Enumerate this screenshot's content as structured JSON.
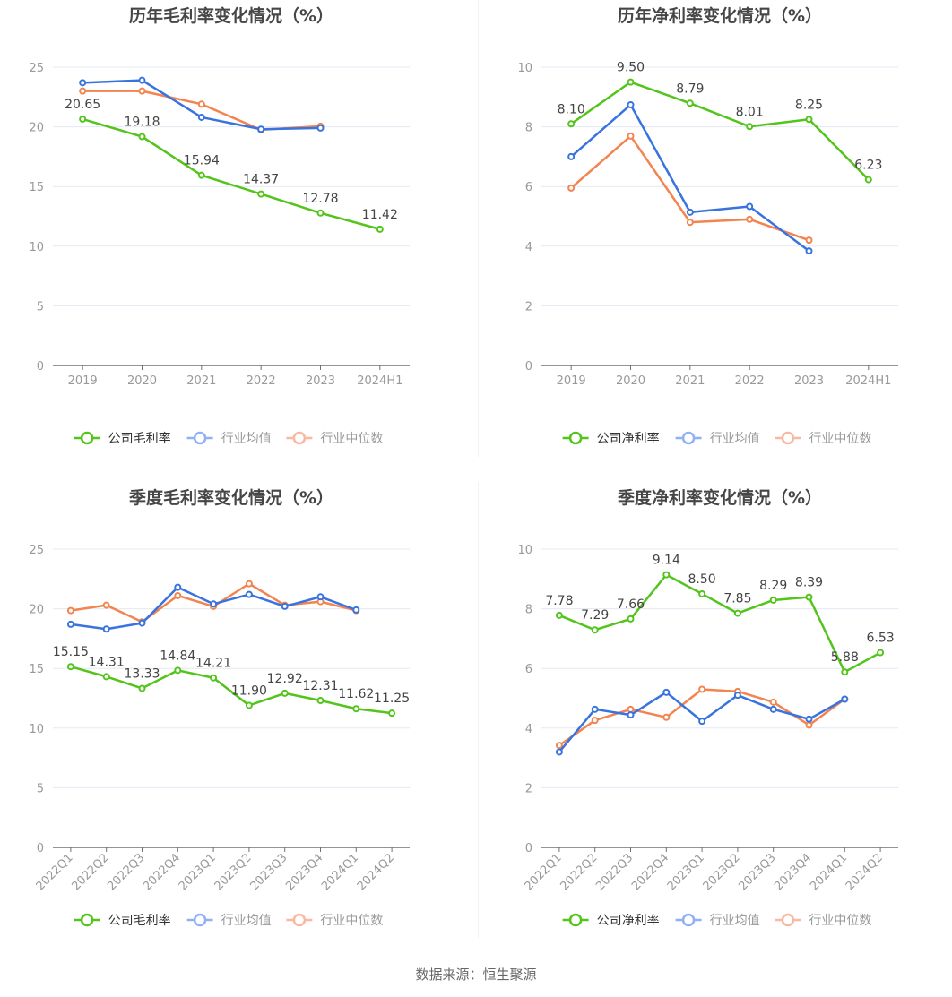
{
  "colors": {
    "company": "#52c41a",
    "avg": "#3873e0",
    "median": "#f3834f",
    "avg_legend": "#90b1f5",
    "median_legend": "#f9b9a0",
    "grid": "#e3e8f2",
    "axis": "#6e7079",
    "tick_text": "#999999",
    "label_text": "#444444",
    "title": "#464646"
  },
  "footer": {
    "source": "数据来源：恒生聚源"
  },
  "chart_data": [
    {
      "type": "line",
      "title": "历年毛利率变化情况（%）",
      "xlabel": "",
      "ylabel": "",
      "categories": [
        "2019",
        "2020",
        "2021",
        "2022",
        "2023",
        "2024H1"
      ],
      "ylim": [
        0,
        25
      ],
      "yticks": [
        "0",
        "5",
        "10",
        "15",
        "20",
        "25"
      ],
      "yticks_values": [
        0,
        5,
        10,
        15,
        20,
        25
      ],
      "grid": true,
      "legend_position": "bottom",
      "rotate_labels": false,
      "series": [
        {
          "name": "公司毛利率",
          "key": "company",
          "values": [
            20.65,
            19.18,
            15.94,
            14.37,
            12.78,
            11.42
          ],
          "labels": [
            "20.65",
            "19.18",
            "15.94",
            "14.37",
            "12.78",
            "11.42"
          ]
        },
        {
          "name": "行业均值",
          "key": "avg",
          "values": [
            23.7,
            23.9,
            20.8,
            19.8,
            19.9,
            null
          ]
        },
        {
          "name": "行业中位数",
          "key": "median",
          "values": [
            23.0,
            23.0,
            21.9,
            19.75,
            20.05,
            null
          ]
        }
      ]
    },
    {
      "type": "line",
      "title": "历年净利率变化情况（%）",
      "xlabel": "",
      "ylabel": "",
      "categories": [
        "2019",
        "2020",
        "2021",
        "2022",
        "2023",
        "2024H1"
      ],
      "ylim": [
        0,
        10
      ],
      "yticks": [
        "0",
        "2",
        "4",
        "6",
        "8",
        "10"
      ],
      "yticks_values": [
        0,
        2,
        4,
        6,
        8,
        10
      ],
      "grid": true,
      "legend_position": "bottom",
      "rotate_labels": false,
      "series": [
        {
          "name": "公司净利率",
          "key": "company",
          "values": [
            8.1,
            9.5,
            8.79,
            8.01,
            8.25,
            6.23
          ],
          "labels": [
            "8.10",
            "9.50",
            "8.79",
            "8.01",
            "8.25",
            "6.23"
          ]
        },
        {
          "name": "行业均值",
          "key": "avg",
          "values": [
            7.0,
            8.74,
            5.14,
            5.33,
            3.84,
            null
          ]
        },
        {
          "name": "行业中位数",
          "key": "median",
          "values": [
            5.95,
            7.69,
            4.8,
            4.9,
            4.2,
            null
          ]
        }
      ]
    },
    {
      "type": "line",
      "title": "季度毛利率变化情况（%）",
      "xlabel": "",
      "ylabel": "",
      "categories": [
        "2022Q1",
        "2022Q2",
        "2022Q3",
        "2022Q4",
        "2023Q1",
        "2023Q2",
        "2023Q3",
        "2023Q4",
        "2024Q1",
        "2024Q2"
      ],
      "ylim": [
        0,
        25
      ],
      "yticks": [
        "0",
        "5",
        "10",
        "15",
        "20",
        "25"
      ],
      "yticks_values": [
        0,
        5,
        10,
        15,
        20,
        25
      ],
      "grid": true,
      "legend_position": "bottom",
      "rotate_labels": true,
      "series": [
        {
          "name": "公司毛利率",
          "key": "company",
          "values": [
            15.15,
            14.31,
            13.33,
            14.84,
            14.21,
            11.9,
            12.92,
            12.31,
            11.62,
            11.25
          ],
          "labels": [
            "15.15",
            "14.31",
            "13.33",
            "14.84",
            "14.21",
            "11.90",
            "12.92",
            "12.31",
            "11.62",
            "11.25"
          ]
        },
        {
          "name": "行业均值",
          "key": "avg",
          "values": [
            18.7,
            18.3,
            18.8,
            21.8,
            20.4,
            21.2,
            20.2,
            21.0,
            19.9,
            null
          ]
        },
        {
          "name": "行业中位数",
          "key": "median",
          "values": [
            19.85,
            20.3,
            18.9,
            21.1,
            20.2,
            22.1,
            20.3,
            20.6,
            19.85,
            null
          ]
        }
      ]
    },
    {
      "type": "line",
      "title": "季度净利率变化情况（%）",
      "xlabel": "",
      "ylabel": "",
      "categories": [
        "2022Q1",
        "2022Q2",
        "2022Q3",
        "2022Q4",
        "2023Q1",
        "2023Q2",
        "2023Q3",
        "2023Q4",
        "2024Q1",
        "2024Q2"
      ],
      "ylim": [
        0,
        10
      ],
      "yticks": [
        "0",
        "2",
        "4",
        "6",
        "8",
        "10"
      ],
      "yticks_values": [
        0,
        2,
        4,
        6,
        8,
        10
      ],
      "grid": true,
      "legend_position": "bottom",
      "rotate_labels": true,
      "series": [
        {
          "name": "公司净利率",
          "key": "company",
          "values": [
            7.78,
            7.29,
            7.66,
            9.14,
            8.5,
            7.85,
            8.29,
            8.39,
            5.88,
            6.53
          ],
          "labels": [
            "7.78",
            "7.29",
            "7.66",
            "9.14",
            "8.50",
            "7.85",
            "8.29",
            "8.39",
            "5.88",
            "6.53"
          ]
        },
        {
          "name": "行业均值",
          "key": "avg",
          "values": [
            3.2,
            4.63,
            4.44,
            5.2,
            4.23,
            5.1,
            4.63,
            4.3,
            4.97,
            null
          ]
        },
        {
          "name": "行业中位数",
          "key": "median",
          "values": [
            3.42,
            4.26,
            4.63,
            4.36,
            5.3,
            5.23,
            4.87,
            4.1,
            4.97,
            null
          ]
        }
      ]
    }
  ]
}
